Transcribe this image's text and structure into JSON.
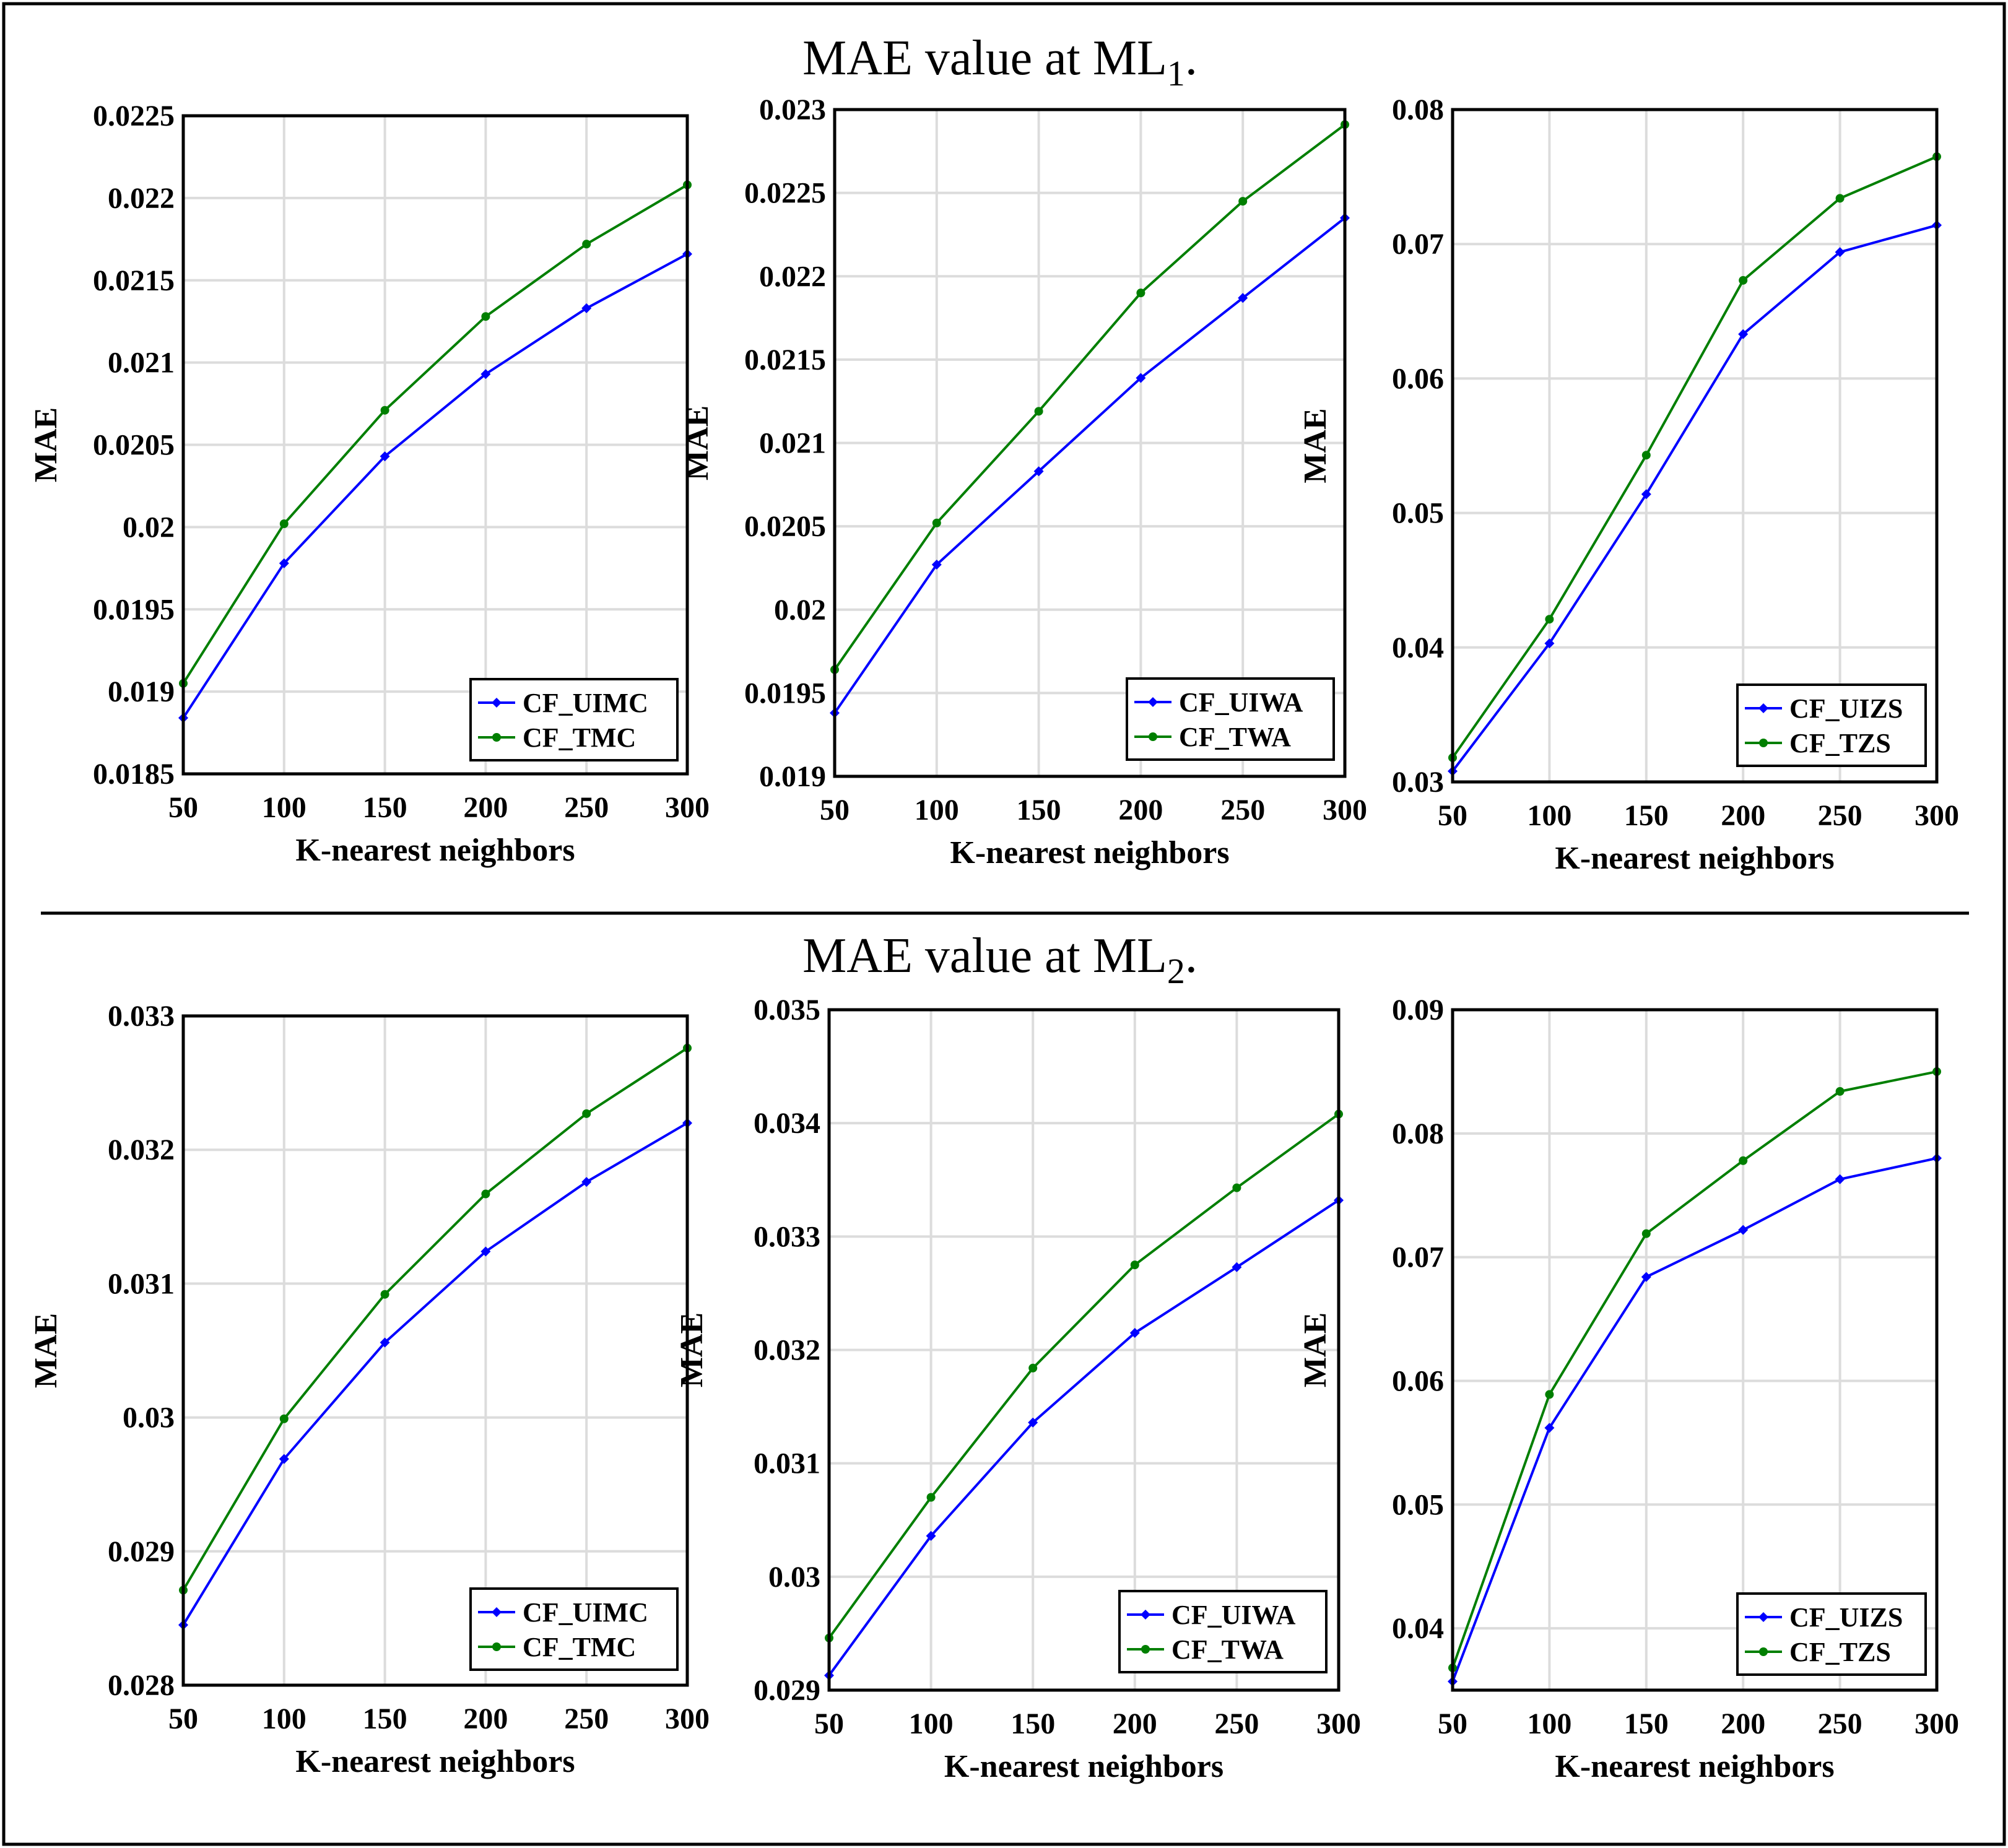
{
  "sections": [
    {
      "title": "MAE value at ML",
      "subscript": "1",
      "suffix": "."
    },
    {
      "title": "MAE value at ML",
      "subscript": "2",
      "suffix": "."
    }
  ],
  "colors": {
    "series_a": "#0000FF",
    "series_b": "#007F00",
    "grid": "#DCDCDC",
    "frame": "#000000"
  },
  "chart_data": [
    {
      "type": "line",
      "section": 0,
      "xlabel": "K-nearest neighbors",
      "ylabel": "MAE",
      "x": [
        50,
        100,
        150,
        200,
        250,
        300
      ],
      "xticks": [
        "50",
        "100",
        "150",
        "200",
        "250",
        "300"
      ],
      "xlim": [
        50,
        300
      ],
      "ylim": [
        0.0185,
        0.0225
      ],
      "yticks": [
        "0.0185",
        "0.019",
        "0.0195",
        "0.02",
        "0.0205",
        "0.021",
        "0.0215",
        "0.022",
        "0.0225"
      ],
      "legend": "bottom-right",
      "series": [
        {
          "name": "CF_UIMC",
          "color": "#0000FF",
          "marker": "diamond",
          "values": [
            0.01884,
            0.01978,
            0.02043,
            0.02093,
            0.02133,
            0.02166
          ]
        },
        {
          "name": "CF_TMC",
          "color": "#007F00",
          "marker": "dot",
          "values": [
            0.01905,
            0.02002,
            0.02071,
            0.02128,
            0.02172,
            0.02208
          ]
        }
      ]
    },
    {
      "type": "line",
      "section": 0,
      "xlabel": "K-nearest neighbors",
      "ylabel": "MAE",
      "x": [
        50,
        100,
        150,
        200,
        250,
        300
      ],
      "xticks": [
        "50",
        "100",
        "150",
        "200",
        "250",
        "300"
      ],
      "xlim": [
        50,
        300
      ],
      "ylim": [
        0.019,
        0.023
      ],
      "yticks": [
        "0.019",
        "0.0195",
        "0.02",
        "0.0205",
        "0.021",
        "0.0215",
        "0.022",
        "0.0225",
        "0.023"
      ],
      "legend": "bottom-right",
      "series": [
        {
          "name": "CF_UIWA",
          "color": "#0000FF",
          "marker": "diamond",
          "values": [
            0.01938,
            0.02027,
            0.02083,
            0.02139,
            0.02187,
            0.02235
          ]
        },
        {
          "name": "CF_TWA",
          "color": "#007F00",
          "marker": "dot",
          "values": [
            0.01964,
            0.02052,
            0.02119,
            0.0219,
            0.02245,
            0.02291
          ]
        }
      ]
    },
    {
      "type": "line",
      "section": 0,
      "xlabel": "K-nearest neighbors",
      "ylabel": "MAE",
      "x": [
        50,
        100,
        150,
        200,
        250,
        300
      ],
      "xticks": [
        "50",
        "100",
        "150",
        "200",
        "250",
        "300"
      ],
      "xlim": [
        50,
        300
      ],
      "ylim": [
        0.03,
        0.08
      ],
      "yticks": [
        "0.03",
        "0.04",
        "0.05",
        "0.06",
        "0.07",
        "0.08"
      ],
      "legend": "bottom-right",
      "series": [
        {
          "name": "CF_UIZS",
          "color": "#0000FF",
          "marker": "diamond",
          "values": [
            0.0308,
            0.0403,
            0.0514,
            0.0633,
            0.0694,
            0.0714
          ]
        },
        {
          "name": "CF_TZS",
          "color": "#007F00",
          "marker": "dot",
          "values": [
            0.0318,
            0.0421,
            0.0543,
            0.0673,
            0.0734,
            0.0765
          ]
        }
      ]
    },
    {
      "type": "line",
      "section": 1,
      "xlabel": "K-nearest neighbors",
      "ylabel": "MAE",
      "x": [
        50,
        100,
        150,
        200,
        250,
        300
      ],
      "xticks": [
        "50",
        "100",
        "150",
        "200",
        "250",
        "300"
      ],
      "xlim": [
        50,
        300
      ],
      "ylim": [
        0.028,
        0.033
      ],
      "yticks": [
        "0.028",
        "0.029",
        "0.03",
        "0.031",
        "0.032",
        "0.033"
      ],
      "legend": "bottom-right",
      "series": [
        {
          "name": "CF_UIMC",
          "color": "#0000FF",
          "marker": "diamond",
          "values": [
            0.02845,
            0.02969,
            0.03056,
            0.03124,
            0.03176,
            0.0322
          ]
        },
        {
          "name": "CF_TMC",
          "color": "#007F00",
          "marker": "dot",
          "values": [
            0.02871,
            0.02999,
            0.03092,
            0.03167,
            0.03227,
            0.03276
          ]
        }
      ]
    },
    {
      "type": "line",
      "section": 1,
      "xlabel": "K-nearest neighbors",
      "ylabel": "MAE",
      "x": [
        50,
        100,
        150,
        200,
        250,
        300
      ],
      "xticks": [
        "50",
        "100",
        "150",
        "200",
        "250",
        "300"
      ],
      "xlim": [
        50,
        300
      ],
      "ylim": [
        0.029,
        0.035
      ],
      "yticks": [
        "0.029",
        "0.03",
        "0.031",
        "0.032",
        "0.033",
        "0.034",
        "0.035"
      ],
      "legend": "bottom-right",
      "series": [
        {
          "name": "CF_UIWA",
          "color": "#0000FF",
          "marker": "diamond",
          "values": [
            0.02913,
            0.03036,
            0.03136,
            0.03215,
            0.03273,
            0.03332
          ]
        },
        {
          "name": "CF_TWA",
          "color": "#007F00",
          "marker": "dot",
          "values": [
            0.02946,
            0.0307,
            0.03184,
            0.03275,
            0.03343,
            0.03408
          ]
        }
      ]
    },
    {
      "type": "line",
      "section": 1,
      "xlabel": "K-nearest neighbors",
      "ylabel": "MAE",
      "x": [
        50,
        100,
        150,
        200,
        250,
        300
      ],
      "xticks": [
        "50",
        "100",
        "150",
        "200",
        "250",
        "300"
      ],
      "xlim": [
        50,
        300
      ],
      "ylim": [
        0.035,
        0.09
      ],
      "yticks": [
        "0.04",
        "0.05",
        "0.06",
        "0.07",
        "0.08",
        "0.09"
      ],
      "legend": "bottom-right",
      "series": [
        {
          "name": "CF_UIZS",
          "color": "#0000FF",
          "marker": "diamond",
          "values": [
            0.0357,
            0.0562,
            0.0684,
            0.0722,
            0.0763,
            0.078
          ]
        },
        {
          "name": "CF_TZS",
          "color": "#007F00",
          "marker": "dot",
          "values": [
            0.0368,
            0.0589,
            0.0719,
            0.0778,
            0.0834,
            0.085
          ]
        }
      ]
    }
  ]
}
